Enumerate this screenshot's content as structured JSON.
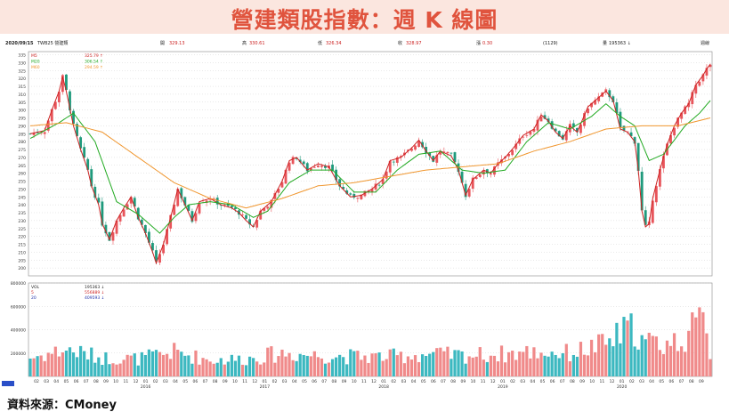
{
  "title": "營建類股指數：週 K 線圖",
  "source": "資料來源：CMoney",
  "info_bar": {
    "date": "2020/09/15",
    "code": "TWB25 營建類",
    "open_label": "開",
    "open": "329.13",
    "high_label": "高",
    "high": "330.61",
    "low_label": "低",
    "low": "326.34",
    "close_label": "收",
    "close": "328.97",
    "change_label": "漲",
    "change": "0.30",
    "count": "(1129)",
    "volume_label": "量",
    "volume": "195363 ↓",
    "period": "週線"
  },
  "colors": {
    "up": "#e8545a",
    "down": "#1f9a7c",
    "ma5": "#cc2222",
    "ma20": "#22aa22",
    "ma60": "#f0962e",
    "vol_up": "#f08a8a",
    "vol_down": "#3cb8c0",
    "grid": "#c8c8c8"
  },
  "chart_data": [
    {
      "type": "candlestick",
      "title": "",
      "xlabel": "",
      "ylabel": "",
      "ylim": [
        195,
        337
      ],
      "y_ticks": [
        200,
        205,
        210,
        215,
        220,
        225,
        230,
        235,
        240,
        245,
        250,
        255,
        260,
        265,
        270,
        275,
        280,
        285,
        290,
        295,
        300,
        305,
        310,
        315,
        320,
        325,
        330,
        335
      ],
      "x_month_ticks": [
        "02",
        "03",
        "04",
        "05",
        "06",
        "07",
        "08",
        "09",
        "10",
        "11",
        "12",
        "01",
        "02",
        "03",
        "04",
        "05",
        "06",
        "07",
        "08",
        "09",
        "10",
        "11",
        "12",
        "01",
        "02",
        "03",
        "04",
        "05",
        "06",
        "07",
        "08",
        "09",
        "10",
        "11",
        "12",
        "01",
        "02",
        "03",
        "04",
        "05",
        "06",
        "07",
        "08",
        "09",
        "10",
        "11",
        "12",
        "01",
        "02",
        "03",
        "04",
        "05",
        "06",
        "07",
        "08",
        "09",
        "10",
        "11",
        "12",
        "01",
        "02",
        "03",
        "04",
        "05",
        "06",
        "07",
        "08",
        "09"
      ],
      "year_ticks": [
        {
          "label": "2016",
          "at_month_index": 11
        },
        {
          "label": "2017",
          "at_month_index": 23
        },
        {
          "label": "2018",
          "at_month_index": 35
        },
        {
          "label": "2019",
          "at_month_index": 47
        },
        {
          "label": "2020",
          "at_month_index": 59
        }
      ],
      "legend": [
        {
          "name": "M5",
          "value": "325.79 ↑"
        },
        {
          "name": "M20",
          "value": "306.54 ↑"
        },
        {
          "name": "M60",
          "value": "294.59 ↑"
        }
      ],
      "series": [
        {
          "name": "M5",
          "color_key": "ma5"
        },
        {
          "name": "M20",
          "color_key": "ma20"
        },
        {
          "name": "M60",
          "color_key": "ma60"
        }
      ],
      "close_path": [
        [
          0,
          285
        ],
        [
          4,
          287
        ],
        [
          6,
          300
        ],
        [
          8,
          312
        ],
        [
          9,
          321
        ],
        [
          10,
          312
        ],
        [
          12,
          290
        ],
        [
          14,
          275
        ],
        [
          16,
          262
        ],
        [
          17,
          252
        ],
        [
          19,
          240
        ],
        [
          20,
          228
        ],
        [
          22,
          218
        ],
        [
          24,
          230
        ],
        [
          26,
          238
        ],
        [
          28,
          245
        ],
        [
          30,
          232
        ],
        [
          32,
          222
        ],
        [
          34,
          210
        ],
        [
          35,
          203
        ],
        [
          37,
          215
        ],
        [
          39,
          232
        ],
        [
          41,
          250
        ],
        [
          43,
          240
        ],
        [
          45,
          230
        ],
        [
          47,
          242
        ],
        [
          50,
          244
        ],
        [
          53,
          240
        ],
        [
          56,
          238
        ],
        [
          58,
          235
        ],
        [
          60,
          230
        ],
        [
          62,
          226
        ],
        [
          64,
          236
        ],
        [
          67,
          242
        ],
        [
          70,
          255
        ],
        [
          72,
          268
        ],
        [
          74,
          270
        ],
        [
          77,
          262
        ],
        [
          80,
          266
        ],
        [
          83,
          264
        ],
        [
          86,
          252
        ],
        [
          89,
          245
        ],
        [
          92,
          246
        ],
        [
          95,
          250
        ],
        [
          98,
          256
        ],
        [
          100,
          268
        ],
        [
          103,
          270
        ],
        [
          106,
          276
        ],
        [
          108,
          281
        ],
        [
          110,
          274
        ],
        [
          112,
          268
        ],
        [
          114,
          274
        ],
        [
          117,
          271
        ],
        [
          119,
          262
        ],
        [
          121,
          246
        ],
        [
          123,
          256
        ],
        [
          126,
          262
        ],
        [
          128,
          260
        ],
        [
          130,
          266
        ],
        [
          132,
          270
        ],
        [
          135,
          278
        ],
        [
          137,
          284
        ],
        [
          140,
          288
        ],
        [
          142,
          297
        ],
        [
          144,
          293
        ],
        [
          146,
          286
        ],
        [
          148,
          282
        ],
        [
          150,
          290
        ],
        [
          152,
          286
        ],
        [
          155,
          302
        ],
        [
          157,
          306
        ],
        [
          159,
          310
        ],
        [
          160,
          312
        ],
        [
          162,
          306
        ],
        [
          164,
          288
        ],
        [
          166,
          286
        ],
        [
          168,
          280
        ],
        [
          169,
          262
        ],
        [
          170,
          236
        ],
        [
          171,
          226
        ],
        [
          172,
          228
        ],
        [
          173,
          244
        ],
        [
          175,
          262
        ],
        [
          177,
          278
        ],
        [
          179,
          290
        ],
        [
          181,
          298
        ],
        [
          183,
          304
        ],
        [
          185,
          316
        ],
        [
          187,
          322
        ],
        [
          188,
          326
        ],
        [
          189,
          329
        ]
      ],
      "ma20_path": [
        [
          0,
          282
        ],
        [
          8,
          292
        ],
        [
          12,
          298
        ],
        [
          18,
          280
        ],
        [
          24,
          242
        ],
        [
          30,
          234
        ],
        [
          36,
          222
        ],
        [
          40,
          232
        ],
        [
          44,
          240
        ],
        [
          50,
          242
        ],
        [
          56,
          240
        ],
        [
          62,
          232
        ],
        [
          66,
          236
        ],
        [
          72,
          254
        ],
        [
          78,
          262
        ],
        [
          84,
          262
        ],
        [
          90,
          248
        ],
        [
          96,
          248
        ],
        [
          102,
          262
        ],
        [
          108,
          272
        ],
        [
          114,
          274
        ],
        [
          120,
          262
        ],
        [
          126,
          260
        ],
        [
          132,
          262
        ],
        [
          138,
          280
        ],
        [
          144,
          292
        ],
        [
          150,
          288
        ],
        [
          156,
          296
        ],
        [
          160,
          304
        ],
        [
          164,
          296
        ],
        [
          168,
          290
        ],
        [
          172,
          268
        ],
        [
          176,
          272
        ],
        [
          182,
          290
        ],
        [
          186,
          298
        ],
        [
          189,
          306
        ]
      ],
      "ma60_path": [
        [
          0,
          290
        ],
        [
          10,
          292
        ],
        [
          20,
          286
        ],
        [
          30,
          270
        ],
        [
          40,
          254
        ],
        [
          50,
          244
        ],
        [
          60,
          238
        ],
        [
          70,
          244
        ],
        [
          80,
          252
        ],
        [
          90,
          254
        ],
        [
          100,
          258
        ],
        [
          110,
          262
        ],
        [
          120,
          264
        ],
        [
          130,
          266
        ],
        [
          140,
          274
        ],
        [
          150,
          280
        ],
        [
          160,
          288
        ],
        [
          170,
          290
        ],
        [
          180,
          290
        ],
        [
          189,
          295
        ]
      ]
    },
    {
      "type": "bar",
      "title": "",
      "xlabel": "",
      "ylabel": "",
      "ylim": [
        0,
        800000
      ],
      "y_ticks": [
        200000,
        400000,
        600000,
        800000
      ],
      "legend": [
        {
          "name": "VOL",
          "value": "195363 ↓"
        },
        {
          "name": "5",
          "value": "556889 ↓"
        },
        {
          "name": "20",
          "value": "409593 ↓"
        }
      ],
      "volume_path": [
        [
          0,
          160000
        ],
        [
          10,
          230000
        ],
        [
          20,
          160000
        ],
        [
          30,
          150000
        ],
        [
          40,
          210000
        ],
        [
          50,
          140000
        ],
        [
          60,
          150000
        ],
        [
          70,
          200000
        ],
        [
          80,
          180000
        ],
        [
          90,
          170000
        ],
        [
          100,
          170000
        ],
        [
          110,
          190000
        ],
        [
          120,
          180000
        ],
        [
          130,
          190000
        ],
        [
          140,
          210000
        ],
        [
          150,
          200000
        ],
        [
          160,
          280000
        ],
        [
          165,
          380000
        ],
        [
          168,
          420000
        ],
        [
          170,
          300000
        ],
        [
          175,
          280000
        ],
        [
          180,
          300000
        ],
        [
          185,
          420000
        ],
        [
          188,
          520000
        ],
        [
          189,
          195363
        ]
      ]
    }
  ]
}
